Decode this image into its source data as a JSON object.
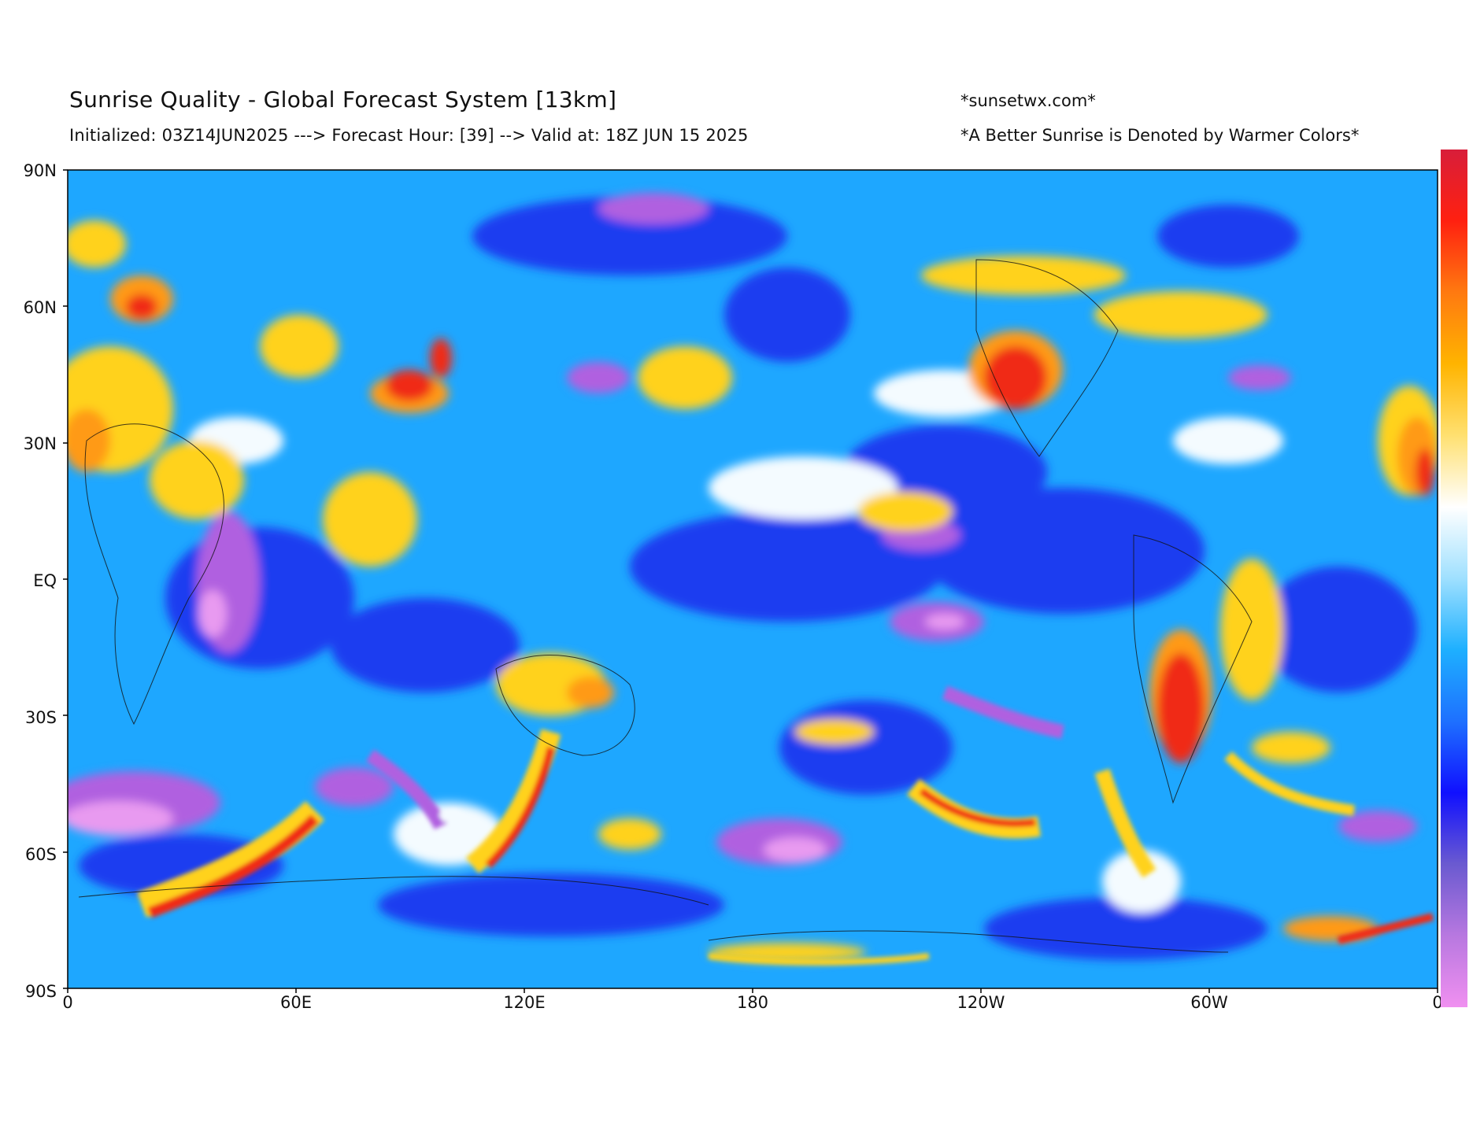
{
  "header": {
    "title": "Sunrise Quality - Global Forecast System [13km]",
    "subtitle": "Initialized: 03Z14JUN2025 ---> Forecast Hour: [39] --> Valid at: 18Z JUN 15 2025",
    "site": "*sunsetwx.com*",
    "note": "*A Better Sunrise is Denoted by Warmer Colors*"
  },
  "map": {
    "lat_ticks": [
      "90N",
      "60N",
      "30N",
      "EQ",
      "30S",
      "60S",
      "90S"
    ],
    "lon_ticks": [
      "0",
      "60E",
      "120E",
      "180",
      "120W",
      "60W",
      "0"
    ],
    "colors": {
      "base": "#1ea7ff",
      "deep_blue": "#1f3cf0",
      "purple": "#b060e0",
      "pink": "#e89af0",
      "white": "#f4fbff",
      "yellow": "#ffd21e",
      "orange": "#ff9a14",
      "red": "#f02a14"
    }
  },
  "colorbar": {
    "stops": [
      "#d81e3a",
      "#ff2010",
      "#ff7a10",
      "#ffb400",
      "#ffe070",
      "#ffffff",
      "#9fe0ff",
      "#1eb0ff",
      "#1e70ff",
      "#1010ff",
      "#6a5ad0",
      "#b878e0",
      "#f090f0"
    ]
  }
}
